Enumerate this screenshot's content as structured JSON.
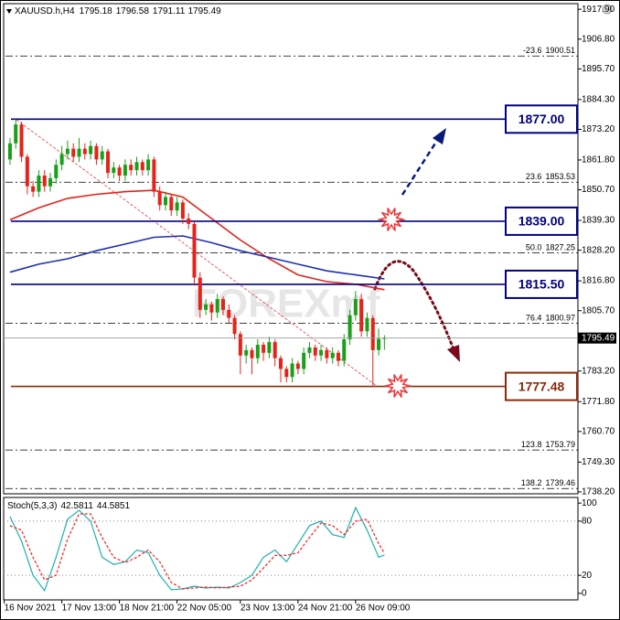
{
  "watermark": "FOREXmf",
  "chart_data": [
    {
      "type": "candlestick",
      "series": {
        "name": "XAUUSD.h,H4",
        "up_color": "#18a018",
        "down_color": "#e5231b",
        "open": [
          1862,
          1868,
          1875,
          1863,
          1852,
          1850,
          1856,
          1852,
          1855,
          1860,
          1864,
          1866,
          1863,
          1866,
          1864,
          1867,
          1862,
          1865,
          1857,
          1859,
          1856,
          1860,
          1858,
          1861,
          1858,
          1862,
          1850,
          1845,
          1848,
          1843,
          1846,
          1840,
          1838,
          1818,
          1806,
          1808,
          1805,
          1810,
          1806,
          1803,
          1797,
          1789,
          1791,
          1788,
          1793,
          1790,
          1794,
          1788,
          1784,
          1781,
          1786,
          1784,
          1790,
          1792,
          1789,
          1791,
          1788,
          1790,
          1787,
          1795,
          1804,
          1810,
          1798,
          1803,
          1791,
          1795.18
        ],
        "high": [
          1870,
          1877,
          1876,
          1864,
          1854,
          1858,
          1858,
          1857,
          1862,
          1867,
          1869,
          1868,
          1870,
          1868,
          1869,
          1868,
          1867,
          1866,
          1861,
          1860,
          1862,
          1862,
          1863,
          1862,
          1864,
          1863,
          1852,
          1850,
          1849,
          1848,
          1847,
          1842,
          1839,
          1820,
          1810,
          1809,
          1812,
          1811,
          1808,
          1804,
          1798,
          1793,
          1792,
          1795,
          1794,
          1796,
          1795,
          1789,
          1785,
          1788,
          1787,
          1792,
          1794,
          1793,
          1793,
          1792,
          1792,
          1791,
          1797,
          1806,
          1813,
          1812,
          1805,
          1804,
          1799,
          1796.58
        ],
        "low": [
          1860,
          1866,
          1861,
          1849,
          1848,
          1848,
          1850,
          1850,
          1853,
          1858,
          1862,
          1861,
          1861,
          1862,
          1862,
          1860,
          1860,
          1855,
          1855,
          1854,
          1854,
          1856,
          1856,
          1856,
          1856,
          1848,
          1843,
          1843,
          1841,
          1841,
          1838,
          1836,
          1815,
          1803,
          1804,
          1802,
          1803,
          1804,
          1801,
          1795,
          1782,
          1786,
          1782,
          1786,
          1787,
          1788,
          1785,
          1779,
          1779,
          1779,
          1782,
          1782,
          1788,
          1787,
          1787,
          1786,
          1786,
          1785,
          1785,
          1793,
          1802,
          1796,
          1796,
          1777.48,
          1789,
          1791.11
        ],
        "close": [
          1868,
          1875,
          1863,
          1852,
          1850,
          1856,
          1852,
          1855,
          1860,
          1864,
          1866,
          1863,
          1866,
          1864,
          1867,
          1862,
          1865,
          1857,
          1859,
          1856,
          1860,
          1858,
          1861,
          1858,
          1862,
          1850,
          1845,
          1848,
          1843,
          1846,
          1840,
          1838,
          1818,
          1806,
          1808,
          1805,
          1810,
          1806,
          1803,
          1797,
          1789,
          1791,
          1788,
          1793,
          1790,
          1794,
          1788,
          1784,
          1781,
          1786,
          1784,
          1790,
          1792,
          1789,
          1791,
          1788,
          1790,
          1787,
          1795,
          1804,
          1810,
          1798,
          1803,
          1791,
          1795.18,
          1795.49
        ]
      },
      "lines": [
        {
          "color": "#e3231b",
          "x": [
            0,
            5,
            10,
            15,
            20,
            25,
            30,
            35,
            40,
            45,
            50,
            55,
            60,
            65
          ],
          "values": [
            1839.5,
            1844,
            1847.5,
            1849,
            1850,
            1850.5,
            1848,
            1840,
            1832,
            1825,
            1819,
            1816.5,
            1815.5,
            1813.5
          ]
        },
        {
          "color": "#1f2fb0",
          "x": [
            0,
            5,
            10,
            15,
            20,
            25,
            30,
            35,
            40,
            45,
            50,
            55,
            60,
            65
          ],
          "values": [
            1820,
            1823,
            1825,
            1828,
            1830.5,
            1833,
            1833.5,
            1831,
            1828,
            1825.5,
            1823,
            1820.5,
            1819,
            1817.5
          ]
        }
      ],
      "levels": [
        {
          "value": 1877,
          "label": "1877.00",
          "color": "#000080"
        },
        {
          "value": 1839,
          "label": "1839.00",
          "color": "#000080"
        },
        {
          "value": 1815.5,
          "label": "1815.50",
          "color": "#000080"
        },
        {
          "value": 1777.48,
          "label": "1777.48",
          "color": "#8b2a0a"
        }
      ],
      "fib_levels": [
        {
          "ratio": "-23.6",
          "value": 1900.51
        },
        {
          "ratio": "23.6",
          "value": 1853.53
        },
        {
          "ratio": "50.0",
          "value": 1827.25
        },
        {
          "ratio": "76.4",
          "value": 1800.97
        },
        {
          "ratio": "123.8",
          "value": 1753.79
        },
        {
          "ratio": "138.2",
          "value": 1739.46
        }
      ],
      "xlim": [
        -1.1,
        98.6
      ],
      "xticks": [
        {
          "value": -1,
          "label": "16 Nov 2021"
        },
        {
          "value": 9,
          "label": "17 Nov 13:00"
        },
        {
          "value": 19,
          "label": "18 Nov 21:00"
        },
        {
          "value": 29,
          "label": "22 Nov 05:00"
        },
        {
          "value": 40,
          "label": "23 Nov 13:00"
        },
        {
          "value": 50,
          "label": "24 Nov 21:00"
        },
        {
          "value": 60,
          "label": "26 Nov 09:00"
        }
      ],
      "ylim": [
        1737.5,
        1920.0
      ],
      "yticks": [
        {
          "value": 1917.9,
          "label": "1917.90"
        },
        {
          "value": 1906.8,
          "label": "1906.80"
        },
        {
          "value": 1895.7,
          "label": "1895.70"
        },
        {
          "value": 1884.3,
          "label": "1884.30"
        },
        {
          "value": 1873.2,
          "label": "1873.20"
        },
        {
          "value": 1861.8,
          "label": "1861.80"
        },
        {
          "value": 1850.7,
          "label": "1850.70"
        },
        {
          "value": 1839.3,
          "label": "1839.30"
        },
        {
          "value": 1828.2,
          "label": "1828.20"
        },
        {
          "value": 1816.8,
          "label": "1816.80"
        },
        {
          "value": 1805.7,
          "label": "1805.70"
        },
        {
          "value": 1783.2,
          "label": "1783.20"
        },
        {
          "value": 1771.8,
          "label": "1771.80"
        },
        {
          "value": 1760.7,
          "label": "1760.70"
        },
        {
          "value": 1749.3,
          "label": "1749.30"
        },
        {
          "value": 1738.2,
          "label": "1738.20"
        }
      ]
    },
    {
      "type": "line",
      "title": "Stoch(5,3,3)",
      "xlim": [
        -1.1,
        98.6
      ],
      "ylim": [
        -7.2,
        106.2
      ],
      "yticks": [
        100,
        80,
        20,
        0
      ],
      "level_lines": [
        80,
        20
      ],
      "series": [
        {
          "color": "#1fb0b0",
          "dashed": false,
          "x": [
            0,
            2,
            4,
            6,
            8,
            10,
            12,
            14,
            16,
            18,
            20,
            22,
            24,
            26,
            28,
            30,
            32,
            34,
            36,
            38,
            40,
            42,
            44,
            46,
            48,
            50,
            52,
            54,
            56,
            58,
            60,
            62,
            64,
            65
          ],
          "values": [
            85,
            58,
            20,
            3,
            40,
            82,
            92,
            80,
            40,
            32,
            35,
            48,
            45,
            20,
            4,
            5,
            8,
            6,
            7,
            6,
            12,
            20,
            40,
            48,
            35,
            55,
            75,
            80,
            65,
            62,
            95,
            70,
            40,
            42.5811
          ]
        },
        {
          "color": "#ff1a1a",
          "dashed": true,
          "x": [
            0,
            2,
            4,
            6,
            8,
            10,
            12,
            14,
            16,
            18,
            20,
            22,
            24,
            26,
            28,
            30,
            32,
            34,
            36,
            38,
            40,
            42,
            44,
            46,
            48,
            50,
            52,
            54,
            56,
            58,
            60,
            62,
            64,
            65
          ],
          "values": [
            75,
            70,
            40,
            15,
            20,
            60,
            88,
            88,
            62,
            40,
            34,
            40,
            48,
            35,
            12,
            5,
            6,
            7,
            6,
            7,
            8,
            15,
            28,
            42,
            42,
            45,
            62,
            78,
            75,
            65,
            80,
            82,
            55,
            44.5851
          ]
        }
      ]
    }
  ]
}
